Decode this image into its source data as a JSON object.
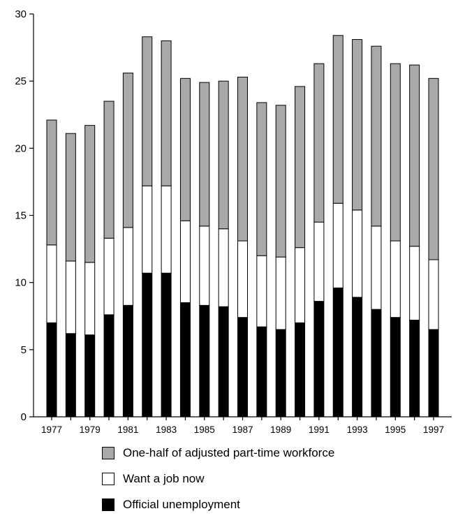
{
  "chart_data": {
    "type": "bar",
    "stacked": true,
    "title": "",
    "xlabel": "",
    "ylabel": "",
    "ylim": [
      0,
      30
    ],
    "yticks": [
      0,
      5,
      10,
      15,
      20,
      25,
      30
    ],
    "grid": false,
    "legend_position": "bottom",
    "categories": [
      "1977",
      "1978",
      "1979",
      "1980",
      "1981",
      "1982",
      "1983",
      "1984",
      "1985",
      "1986",
      "1987",
      "1988",
      "1989",
      "1990",
      "1991",
      "1992",
      "1993",
      "1994",
      "1995",
      "1996",
      "1997"
    ],
    "xtick_labels": [
      "1977",
      "",
      "1979",
      "",
      "1981",
      "",
      "1983",
      "",
      "1985",
      "",
      "1987",
      "",
      "1989",
      "",
      "1991",
      "",
      "1993",
      "",
      "1995",
      "",
      "1997"
    ],
    "series": [
      {
        "name": "Official unemployment",
        "color": "#000000",
        "values": [
          7.0,
          6.2,
          6.1,
          7.6,
          8.3,
          10.7,
          10.7,
          8.5,
          8.3,
          8.2,
          7.4,
          6.7,
          6.5,
          7.0,
          8.6,
          9.6,
          8.9,
          8.0,
          7.4,
          7.2,
          6.5
        ]
      },
      {
        "name": "Want a job now",
        "color": "#ffffff",
        "values": [
          5.8,
          5.4,
          5.4,
          5.7,
          5.8,
          6.5,
          6.5,
          6.1,
          5.9,
          5.8,
          5.7,
          5.3,
          5.4,
          5.6,
          5.9,
          6.3,
          6.5,
          6.2,
          5.7,
          5.5,
          5.2
        ]
      },
      {
        "name": "One-half of adjusted part-time workforce",
        "color": "#a9a9a9",
        "values": [
          9.3,
          9.5,
          10.2,
          10.2,
          11.5,
          11.1,
          10.8,
          10.6,
          10.7,
          11.0,
          12.2,
          11.4,
          11.3,
          12.0,
          11.8,
          12.5,
          12.7,
          13.4,
          13.2,
          13.5,
          13.5
        ]
      }
    ]
  }
}
